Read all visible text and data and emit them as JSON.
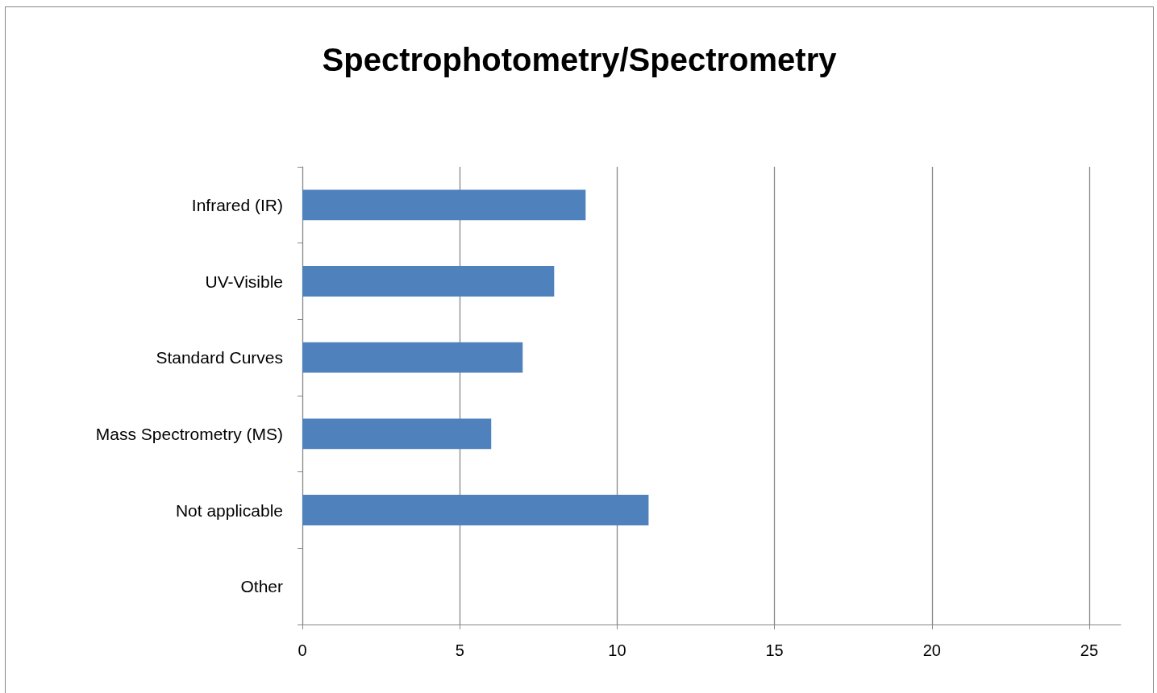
{
  "chart_data": {
    "type": "bar",
    "orientation": "horizontal",
    "title": "Spectrophotometry/Spectrometry",
    "categories": [
      "Infrared (IR)",
      "UV-Visible",
      "Standard Curves",
      "Mass Spectrometry (MS)",
      "Not applicable",
      "Other"
    ],
    "values": [
      9,
      8,
      7,
      6,
      11,
      0
    ],
    "color": "#4f81bd",
    "xlim": [
      0,
      26
    ],
    "xticks": [
      0,
      5,
      10,
      15,
      20,
      25
    ],
    "grid": "x"
  }
}
